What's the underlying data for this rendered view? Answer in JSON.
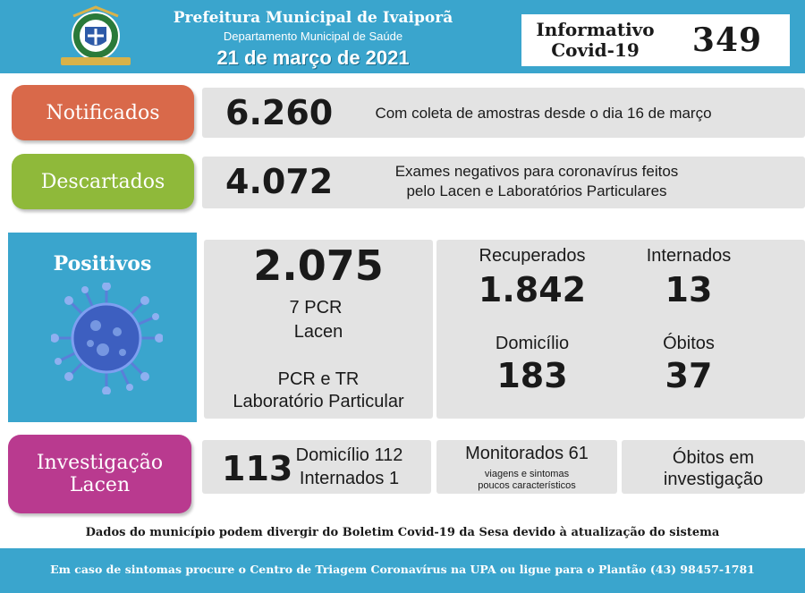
{
  "header": {
    "title": "Prefeitura Municipal de Ivaiporã",
    "department": "Departamento Municipal de Saúde",
    "date": "21 de março de 2021",
    "bulletin_label_line1": "Informativo",
    "bulletin_label_line2": "Covid-19",
    "bulletin_number": "349"
  },
  "notificados": {
    "label": "Notificados",
    "value": "6.260",
    "description": "Com coleta de amostras desde o dia 16 de março"
  },
  "descartados": {
    "label": "Descartados",
    "value": "4.072",
    "description_line1": "Exames negativos para coronavírus feitos",
    "description_line2": "pelo Lacen e Laboratórios Particulares"
  },
  "positivos": {
    "label": "Positivos",
    "value": "2.075",
    "pcr_line": "7 PCR",
    "lacen_line": "Lacen",
    "pcr_tr_line": "PCR e TR",
    "lab_line": "Laboratório Particular",
    "recuperados_label": "Recuperados",
    "recuperados_value": "1.842",
    "internados_label": "Internados",
    "internados_value": "13",
    "domicilio_label": "Domicílio",
    "domicilio_value": "183",
    "obitos_label": "Óbitos",
    "obitos_value": "37"
  },
  "investigacao": {
    "label_line1": "Investigação",
    "label_line2": "Lacen",
    "value": "113",
    "domicilio": "Domicílio 112",
    "internados": "Internados 1",
    "monitorados": "Monitorados 61",
    "monitorados_note_line1": "viagens e sintomas",
    "monitorados_note_line2": "poucos característicos",
    "obitos_line1": "Óbitos em",
    "obitos_line2": "investigação"
  },
  "footer": {
    "note": "Dados do município podem divergir do Boletim Covid-19 da Sesa devido à atualização do sistema",
    "contact": "Em caso de sintomas procure o Centro de Triagem Coronavírus na UPA ou ligue para o Plantão (43) 98457-1781"
  },
  "colors": {
    "header_blue": "#3aa5cd",
    "notificados": "#d9694a",
    "descartados": "#8fb93a",
    "investigacao": "#b93a8f"
  },
  "icons": [
    "municipal-seal",
    "coronavirus-illustration"
  ]
}
